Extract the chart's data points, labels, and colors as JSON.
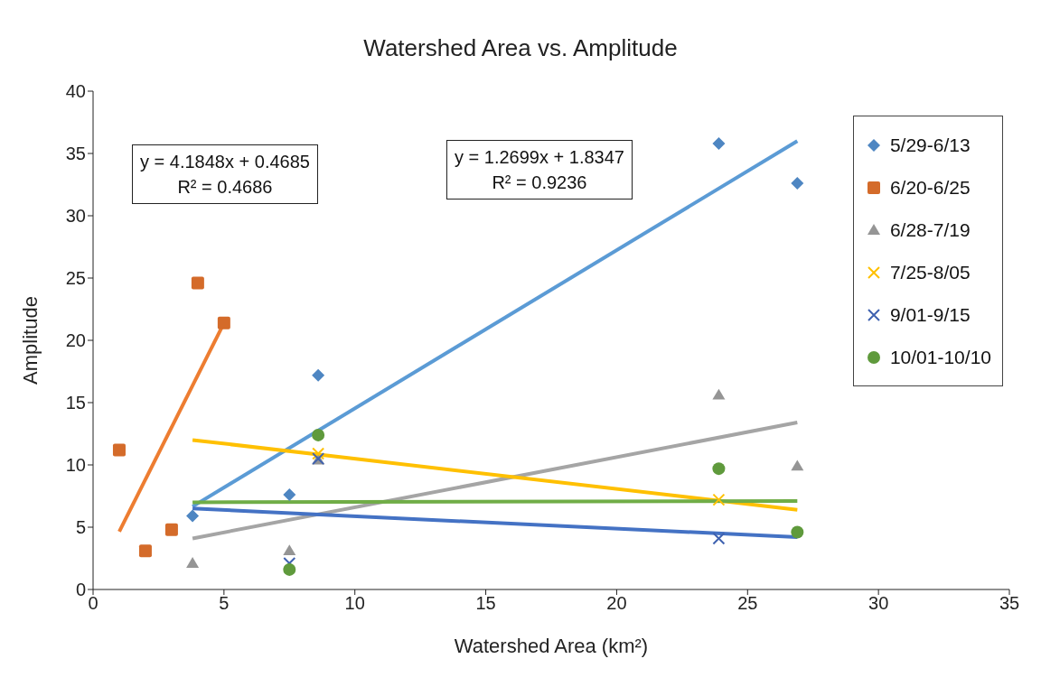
{
  "chart_data": {
    "type": "scatter",
    "title": "Watershed Area vs. Amplitude",
    "xlabel": "Watershed Area (km²)",
    "ylabel": "Amplitude",
    "xlim": [
      0,
      35
    ],
    "xticks": [
      0,
      5,
      10,
      15,
      20,
      25,
      30,
      35
    ],
    "ylim": [
      0,
      40
    ],
    "yticks": [
      0,
      5,
      10,
      15,
      20,
      25,
      30,
      35,
      40
    ],
    "grid": false,
    "legend": "right",
    "annotations": [
      "y = 4.1848x + 0.4685\nR² = 0.4686",
      "y = 1.2699x + 1.8347\nR² = 0.9236"
    ],
    "series": [
      {
        "name": "5/29-6/13",
        "color": "#4e86c2",
        "marker": "diamond",
        "x": [
          3.8,
          7.5,
          8.6,
          23.9,
          26.9
        ],
        "values": [
          5.9,
          7.6,
          17.2,
          35.8,
          32.6
        ]
      },
      {
        "name": "6/20-6/25",
        "color": "#d46b2a",
        "marker": "square",
        "x": [
          1,
          2,
          3,
          4,
          5
        ],
        "values": [
          11.2,
          3.1,
          4.8,
          24.6,
          21.4
        ]
      },
      {
        "name": "6/28-7/19",
        "color": "#959595",
        "marker": "triangle",
        "x": [
          3.8,
          7.5,
          8.6,
          23.9,
          26.9
        ],
        "values": [
          2.1,
          3.1,
          10.4,
          15.6,
          9.9
        ]
      },
      {
        "name": "7/25-8/05",
        "color": "#ffc000",
        "marker": "cross",
        "x": [
          8.6,
          23.9
        ],
        "values": [
          10.9,
          7.2
        ]
      },
      {
        "name": "9/01-9/15",
        "color": "#3f62b0",
        "marker": "cross",
        "x": [
          7.5,
          8.6,
          23.9
        ],
        "values": [
          2.1,
          10.5,
          4.1
        ]
      },
      {
        "name": "10/01-10/10",
        "color": "#5f9a3c",
        "marker": "circle",
        "x": [
          7.5,
          8.6,
          23.9,
          26.9
        ],
        "values": [
          1.6,
          12.4,
          9.7,
          4.6
        ]
      },
      {
        "type": "line",
        "color": "#5b9bd5",
        "marker": "none",
        "x": [
          3.8,
          26.9
        ],
        "values": [
          6.66,
          36.0
        ]
      },
      {
        "type": "line",
        "color": "#ed7d31",
        "marker": "none",
        "x": [
          1,
          5
        ],
        "values": [
          4.65,
          21.39
        ]
      },
      {
        "type": "line",
        "color": "#a5a5a5",
        "marker": "none",
        "x": [
          3.8,
          26.9
        ],
        "values": [
          4.1,
          13.4
        ]
      },
      {
        "type": "line",
        "color": "#ffc000",
        "marker": "none",
        "x": [
          3.8,
          26.9
        ],
        "values": [
          12.0,
          6.4
        ]
      },
      {
        "type": "line",
        "color": "#4472c4",
        "marker": "none",
        "x": [
          3.8,
          26.9
        ],
        "values": [
          6.5,
          4.2
        ]
      },
      {
        "type": "line",
        "color": "#70ad47",
        "marker": "none",
        "x": [
          3.8,
          26.9
        ],
        "values": [
          7.0,
          7.1
        ]
      }
    ]
  }
}
